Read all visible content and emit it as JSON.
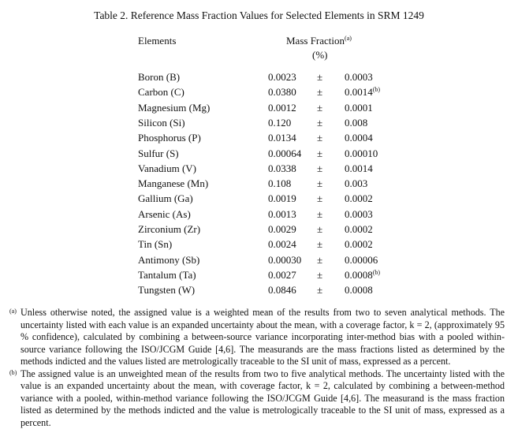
{
  "title": "Table 2.  Reference Mass Fraction Values for Selected Elements in SRM 1249",
  "headers": {
    "elements": "Elements",
    "mass_fraction": "Mass Fraction",
    "mass_fraction_note": "(a)",
    "unit": "(%)"
  },
  "rows": [
    {
      "element": "Boron (B)",
      "value": "0.0023",
      "pm": "±",
      "uncertainty": "0.0003",
      "note": ""
    },
    {
      "element": "Carbon (C)",
      "value": "0.0380",
      "pm": "±",
      "uncertainty": "0.0014",
      "note": "(b)"
    },
    {
      "element": "Magnesium (Mg)",
      "value": "0.0012",
      "pm": "±",
      "uncertainty": "0.0001",
      "note": ""
    },
    {
      "element": "Silicon (Si)",
      "value": "0.120",
      "pm": "±",
      "uncertainty": "0.008",
      "note": ""
    },
    {
      "element": "Phosphorus (P)",
      "value": "0.0134",
      "pm": "±",
      "uncertainty": "0.0004",
      "note": ""
    },
    {
      "element": "Sulfur (S)",
      "value": "0.00064",
      "pm": "±",
      "uncertainty": "0.00010",
      "note": ""
    },
    {
      "element": "Vanadium (V)",
      "value": "0.0338",
      "pm": "±",
      "uncertainty": "0.0014",
      "note": ""
    },
    {
      "element": "Manganese (Mn)",
      "value": "0.108",
      "pm": "±",
      "uncertainty": "0.003",
      "note": ""
    },
    {
      "element": "Gallium (Ga)",
      "value": "0.0019",
      "pm": "±",
      "uncertainty": "0.0002",
      "note": ""
    },
    {
      "element": "Arsenic (As)",
      "value": "0.0013",
      "pm": "±",
      "uncertainty": "0.0003",
      "note": ""
    },
    {
      "element": "Zirconium (Zr)",
      "value": "0.0029",
      "pm": "±",
      "uncertainty": "0.0002",
      "note": ""
    },
    {
      "element": "Tin (Sn)",
      "value": "0.0024",
      "pm": "±",
      "uncertainty": "0.0002",
      "note": ""
    },
    {
      "element": "Antimony (Sb)",
      "value": "0.00030",
      "pm": "±",
      "uncertainty": "0.00006",
      "note": ""
    },
    {
      "element": "Tantalum (Ta)",
      "value": "0.0027",
      "pm": "±",
      "uncertainty": "0.0008",
      "note": "(b)"
    },
    {
      "element": "Tungsten (W)",
      "value": "0.0846",
      "pm": "±",
      "uncertainty": "0.0008",
      "note": ""
    }
  ],
  "footnotes": [
    {
      "marker": "(a)",
      "text": "Unless otherwise noted, the assigned value is a weighted mean of the results from two to seven analytical methods.  The uncertainty listed with each value is an expanded uncertainty about the mean, with a coverage factor, k = 2, (approximately 95 % confidence), calculated by combining a between-source variance incorporating inter-method bias with a pooled within-source variance following the ISO/JCGM Guide [4,6].  The measurands are the mass fractions listed as determined by the methods indicted and the values listed are metrologically traceable to the SI unit of mass, expressed as a percent."
    },
    {
      "marker": "(b)",
      "text": "The assigned value is an unweighted mean of the results from two to five analytical methods.  The uncertainty listed with the value is an expanded uncertainty about the mean, with coverage factor, k = 2, calculated by combining a between-method variance with a pooled, within-method variance following the ISO/JCGM Guide [4,6].  The measurand is the mass fraction listed as determined by the methods indicted and the value is metrologically traceable to the SI unit of mass, expressed as a percent."
    }
  ]
}
